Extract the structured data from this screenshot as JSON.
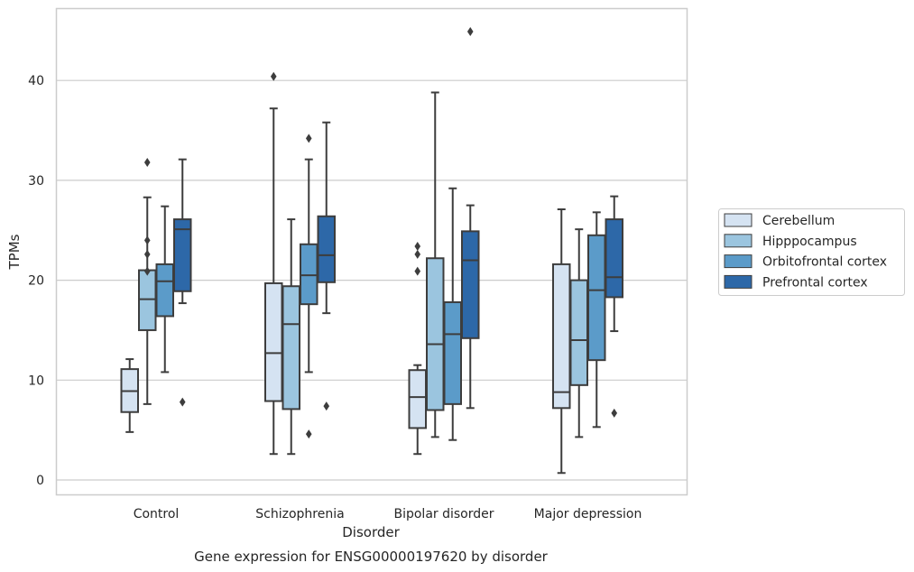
{
  "chart_data": {
    "type": "box",
    "title": "Gene expression for ENSG00000197620 by disorder",
    "xlabel": "Disorder",
    "ylabel": "TPMs",
    "ylim": [
      -1.4,
      47.4
    ],
    "yticks": [
      0,
      10,
      20,
      30,
      40
    ],
    "grid": "horizontal",
    "legend_position": "right",
    "categories": [
      "Control",
      "Schizophrenia",
      "Bipolar disorder",
      "Major depression"
    ],
    "series": [
      {
        "name": "Cerebellum",
        "color": "#d5e3f2",
        "boxes": [
          {
            "whislo": 4.8,
            "q1": 6.8,
            "med": 8.9,
            "q3": 11.1,
            "whishi": 12.1,
            "fliers": []
          },
          {
            "whislo": 2.6,
            "q1": 7.9,
            "med": 12.7,
            "q3": 19.7,
            "whishi": 37.2,
            "fliers": [
              40.4
            ]
          },
          {
            "whislo": 2.6,
            "q1": 5.2,
            "med": 8.3,
            "q3": 11.0,
            "whishi": 11.5,
            "fliers": [
              20.9,
              22.6,
              23.4
            ]
          },
          {
            "whislo": 0.7,
            "q1": 7.2,
            "med": 8.8,
            "q3": 21.6,
            "whishi": 27.1,
            "fliers": []
          }
        ]
      },
      {
        "name": "Hipppocampus",
        "color": "#9bc5df",
        "boxes": [
          {
            "whislo": 7.6,
            "q1": 15.0,
            "med": 18.1,
            "q3": 21.0,
            "whishi": 28.3,
            "fliers": [
              20.9,
              22.6,
              24.0,
              31.8
            ]
          },
          {
            "whislo": 2.6,
            "q1": 7.1,
            "med": 15.6,
            "q3": 19.4,
            "whishi": 26.1,
            "fliers": []
          },
          {
            "whislo": 4.3,
            "q1": 7.0,
            "med": 13.6,
            "q3": 22.2,
            "whishi": 38.8,
            "fliers": []
          },
          {
            "whislo": 4.3,
            "q1": 9.5,
            "med": 14.0,
            "q3": 20.0,
            "whishi": 25.1,
            "fliers": []
          }
        ]
      },
      {
        "name": "Orbitofrontal cortex",
        "color": "#5b9bc9",
        "boxes": [
          {
            "whislo": 10.8,
            "q1": 16.4,
            "med": 19.9,
            "q3": 21.6,
            "whishi": 27.4,
            "fliers": []
          },
          {
            "whislo": 10.8,
            "q1": 17.6,
            "med": 20.5,
            "q3": 23.6,
            "whishi": 32.1,
            "fliers": [
              4.6,
              34.2
            ]
          },
          {
            "whislo": 4.0,
            "q1": 7.6,
            "med": 14.6,
            "q3": 17.8,
            "whishi": 29.2,
            "fliers": []
          },
          {
            "whislo": 5.3,
            "q1": 12.0,
            "med": 19.0,
            "q3": 24.5,
            "whishi": 26.8,
            "fliers": []
          }
        ]
      },
      {
        "name": "Prefrontal cortex",
        "color": "#2d68a8",
        "boxes": [
          {
            "whislo": 17.7,
            "q1": 18.9,
            "med": 25.1,
            "q3": 26.1,
            "whishi": 32.1,
            "fliers": [
              7.8
            ]
          },
          {
            "whislo": 16.7,
            "q1": 19.8,
            "med": 22.5,
            "q3": 26.4,
            "whishi": 35.8,
            "fliers": [
              7.4
            ]
          },
          {
            "whislo": 7.2,
            "q1": 14.2,
            "med": 22.0,
            "q3": 24.9,
            "whishi": 27.5,
            "fliers": [
              44.9
            ]
          },
          {
            "whislo": 14.9,
            "q1": 18.3,
            "med": 20.3,
            "q3": 26.1,
            "whishi": 28.4,
            "fliers": [
              6.7
            ]
          }
        ]
      }
    ]
  }
}
